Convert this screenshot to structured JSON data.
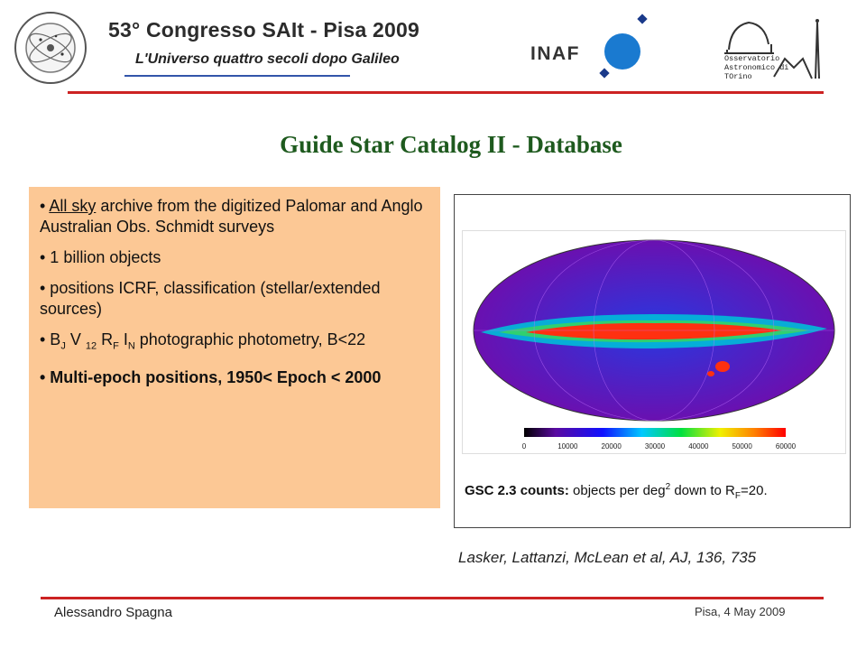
{
  "header": {
    "title": "53° Congresso SAIt - Pisa 2009",
    "subtitle": "L'Universo quattro secoli dopo Galileo",
    "inaf_logo": "INAF",
    "sait_logo": "Società Astronomica Italiana · 1871 · Società degli Spettroscopisti",
    "observatory_lines": [
      "Osservatorio",
      "Astronomico di",
      "TOrino"
    ]
  },
  "slide_title": "Guide Star Catalog II  -  Database",
  "bullets": {
    "b1_prefix": "• ",
    "b1_link": "All sky",
    "b1_rest": " archive from the digitized Palomar and Anglo Australian Obs. Schmidt surveys",
    "b2": "• 1 billion objects",
    "b3": "•  positions ICRF, classification (stellar/extended sources)",
    "b4_a": "•  B",
    "b4_j": "J",
    "b4_b": " V ",
    "b4_12": "12",
    "b4_c": " R",
    "b4_f": "F",
    "b4_d": " I",
    "b4_n": "N",
    "b4_e": " photographic photometry, B<22",
    "b5": "•  Multi-epoch positions,  1950< Epoch < 2000"
  },
  "figure": {
    "colorbar_ticks": [
      "0",
      "10000",
      "20000",
      "30000",
      "40000",
      "50000",
      "60000"
    ],
    "caption_bold": "GSC 2.3 counts:",
    "caption_text": " objects per deg",
    "caption_sup": "2",
    "caption_text2": " down to R",
    "caption_sub": "F",
    "caption_end": "=20."
  },
  "reference": "Lasker, Lattanzi, McLean et al, AJ, 136, 735",
  "footer": {
    "author": "Alessandro Spagna",
    "date": "Pisa, 4 May 2009"
  },
  "colors": {
    "accent_red": "#cc2222",
    "title_green": "#1e5a1e",
    "box_orange": "#fcc895"
  }
}
